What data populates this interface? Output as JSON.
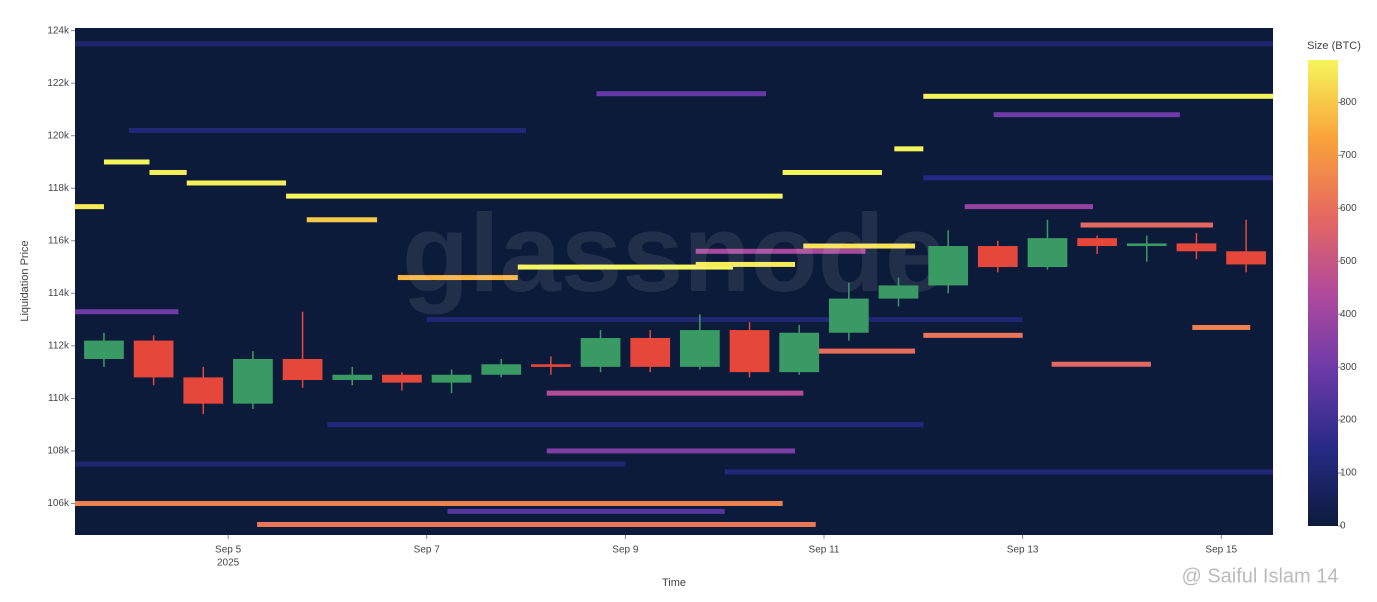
{
  "chart_data": {
    "type": "heatmap",
    "y_label": "Liquidation Price",
    "x_label": "Time",
    "watermark": "glassnode",
    "credit": "@ Saiful Islam 14",
    "colorbar_title": "Size (BTC)",
    "background": "#0d1b3a",
    "colorscale": [
      "#0d1b3a",
      "#272a86",
      "#6b3aa8",
      "#b14a9c",
      "#e6695f",
      "#f9a43a",
      "#f5f55c"
    ],
    "clim": [
      0,
      880
    ],
    "cticks": [
      0,
      100,
      200,
      300,
      400,
      500,
      600,
      700,
      800
    ],
    "xlim": [
      "2025-09-03T11:00",
      "2025-09-15T12:30"
    ],
    "xticks": [
      {
        "value": "2025-09-05T00:00",
        "label": "Sep 5"
      },
      {
        "value": "2025-09-07T00:00",
        "label": "Sep 7"
      },
      {
        "value": "2025-09-09T00:00",
        "label": "Sep 9"
      },
      {
        "value": "2025-09-11T00:00",
        "label": "Sep 11"
      },
      {
        "value": "2025-09-13T00:00",
        "label": "Sep 13"
      },
      {
        "value": "2025-09-15T00:00",
        "label": "Sep 15"
      }
    ],
    "x_year_label": "2025",
    "ylim": [
      104800,
      124100
    ],
    "yticks": [
      {
        "value": 106000,
        "label": "106k"
      },
      {
        "value": 108000,
        "label": "108k"
      },
      {
        "value": 110000,
        "label": "110k"
      },
      {
        "value": 112000,
        "label": "112k"
      },
      {
        "value": 114000,
        "label": "114k"
      },
      {
        "value": 116000,
        "label": "116k"
      },
      {
        "value": 118000,
        "label": "118k"
      },
      {
        "value": 120000,
        "label": "120k"
      },
      {
        "value": 122000,
        "label": "122k"
      },
      {
        "value": 124000,
        "label": "124k"
      }
    ],
    "bands": [
      {
        "start": "2025-09-03T11:00",
        "end": "2025-09-15T12:30",
        "price": 123500,
        "size": 100
      },
      {
        "start": "2025-09-04T00:00",
        "end": "2025-09-08T00:00",
        "price": 120200,
        "size": 120
      },
      {
        "start": "2025-09-03T11:00",
        "end": "2025-09-09T00:00",
        "price": 107500,
        "size": 110
      },
      {
        "start": "2025-09-06T00:00",
        "end": "2025-09-12T00:00",
        "price": 109000,
        "size": 130
      },
      {
        "start": "2025-09-10T00:00",
        "end": "2025-09-15T12:30",
        "price": 107200,
        "size": 120
      },
      {
        "start": "2025-09-07T00:00",
        "end": "2025-09-13T00:00",
        "price": 113000,
        "size": 110
      },
      {
        "start": "2025-09-12T00:00",
        "end": "2025-09-15T12:30",
        "price": 118400,
        "size": 140
      },
      {
        "start": "2025-09-07T05:00",
        "end": "2025-09-10T00:00",
        "price": 105700,
        "size": 250
      },
      {
        "start": "2025-09-08T17:00",
        "end": "2025-09-10T10:00",
        "price": 121600,
        "size": 280
      },
      {
        "start": "2025-09-03T11:00",
        "end": "2025-09-04T12:00",
        "price": 113300,
        "size": 300
      },
      {
        "start": "2025-09-08T05:00",
        "end": "2025-09-10T17:00",
        "price": 108000,
        "size": 330
      },
      {
        "start": "2025-09-12T17:00",
        "end": "2025-09-14T14:00",
        "price": 120800,
        "size": 300
      },
      {
        "start": "2025-09-12T10:00",
        "end": "2025-09-13T17:00",
        "price": 117300,
        "size": 380
      },
      {
        "start": "2025-09-09T17:00",
        "end": "2025-09-11T10:00",
        "price": 115600,
        "size": 420
      },
      {
        "start": "2025-09-08T05:00",
        "end": "2025-09-10T19:00",
        "price": 110200,
        "size": 450
      },
      {
        "start": "2025-09-03T11:00",
        "end": "2025-09-10T14:00",
        "price": 106000,
        "size": 650
      },
      {
        "start": "2025-09-05T07:00",
        "end": "2025-09-10T22:00",
        "price": 105200,
        "size": 620
      },
      {
        "start": "2025-09-10T19:00",
        "end": "2025-09-11T22:00",
        "price": 111800,
        "size": 600
      },
      {
        "start": "2025-09-12T00:00",
        "end": "2025-09-13T00:00",
        "price": 112400,
        "size": 620
      },
      {
        "start": "2025-09-13T07:00",
        "end": "2025-09-14T07:00",
        "price": 111300,
        "size": 580
      },
      {
        "start": "2025-09-14T17:00",
        "end": "2025-09-15T07:00",
        "price": 112700,
        "size": 650
      },
      {
        "start": "2025-09-13T14:00",
        "end": "2025-09-14T22:00",
        "price": 116600,
        "size": 580
      },
      {
        "start": "2025-09-03T11:00",
        "end": "2025-09-03T18:00",
        "price": 117300,
        "size": 860
      },
      {
        "start": "2025-09-03T18:00",
        "end": "2025-09-04T05:00",
        "price": 119000,
        "size": 880
      },
      {
        "start": "2025-09-04T05:00",
        "end": "2025-09-04T14:00",
        "price": 118600,
        "size": 870
      },
      {
        "start": "2025-09-04T14:00",
        "end": "2025-09-05T14:00",
        "price": 118200,
        "size": 870
      },
      {
        "start": "2025-09-05T14:00",
        "end": "2025-09-10T14:00",
        "price": 117700,
        "size": 880
      },
      {
        "start": "2025-09-05T19:00",
        "end": "2025-09-06T12:00",
        "price": 116800,
        "size": 800
      },
      {
        "start": "2025-09-06T17:00",
        "end": "2025-09-07T22:00",
        "price": 114600,
        "size": 760
      },
      {
        "start": "2025-09-07T22:00",
        "end": "2025-09-10T02:00",
        "price": 115000,
        "size": 880
      },
      {
        "start": "2025-09-09T17:00",
        "end": "2025-09-10T17:00",
        "price": 115100,
        "size": 860
      },
      {
        "start": "2025-09-10T14:00",
        "end": "2025-09-11T14:00",
        "price": 118600,
        "size": 880
      },
      {
        "start": "2025-09-10T19:00",
        "end": "2025-09-11T22:00",
        "price": 115800,
        "size": 850
      },
      {
        "start": "2025-09-11T17:00",
        "end": "2025-09-12T00:00",
        "price": 119500,
        "size": 880
      },
      {
        "start": "2025-09-12T00:00",
        "end": "2025-09-15T12:30",
        "price": 121500,
        "size": 880
      }
    ],
    "candles": {
      "up_color": "#3a9a64",
      "down_color": "#e5473a",
      "x": [
        "2025-09-03T18:00",
        "2025-09-04T06:00",
        "2025-09-04T18:00",
        "2025-09-05T06:00",
        "2025-09-05T18:00",
        "2025-09-06T06:00",
        "2025-09-06T18:00",
        "2025-09-07T06:00",
        "2025-09-07T18:00",
        "2025-09-08T06:00",
        "2025-09-08T18:00",
        "2025-09-09T06:00",
        "2025-09-09T18:00",
        "2025-09-10T06:00",
        "2025-09-10T18:00",
        "2025-09-11T06:00",
        "2025-09-11T18:00",
        "2025-09-12T06:00",
        "2025-09-12T18:00",
        "2025-09-13T06:00",
        "2025-09-13T18:00",
        "2025-09-14T06:00",
        "2025-09-14T18:00",
        "2025-09-15T06:00"
      ],
      "open": [
        111500,
        112200,
        110800,
        109800,
        111500,
        110700,
        110900,
        110600,
        110900,
        111300,
        111200,
        112300,
        111200,
        112600,
        111000,
        112500,
        113800,
        114300,
        115800,
        115000,
        116100,
        115800,
        115900,
        115600
      ],
      "high": [
        112500,
        112400,
        111200,
        111800,
        113300,
        111200,
        111000,
        111100,
        111500,
        111600,
        112600,
        112600,
        113200,
        112900,
        112800,
        114400,
        114600,
        116400,
        116000,
        116800,
        116200,
        116200,
        116300,
        116800
      ],
      "low": [
        111200,
        110500,
        109400,
        109600,
        110400,
        110500,
        110300,
        110200,
        110800,
        110900,
        111000,
        111000,
        111100,
        110800,
        110900,
        112200,
        113500,
        114000,
        114800,
        114900,
        115500,
        115200,
        115300,
        114800
      ],
      "close": [
        112200,
        110800,
        109800,
        111500,
        110700,
        110900,
        110600,
        110900,
        111300,
        111200,
        112300,
        111200,
        112600,
        111000,
        112500,
        113800,
        114300,
        115800,
        115000,
        116100,
        115800,
        115900,
        115600,
        115100
      ]
    }
  }
}
